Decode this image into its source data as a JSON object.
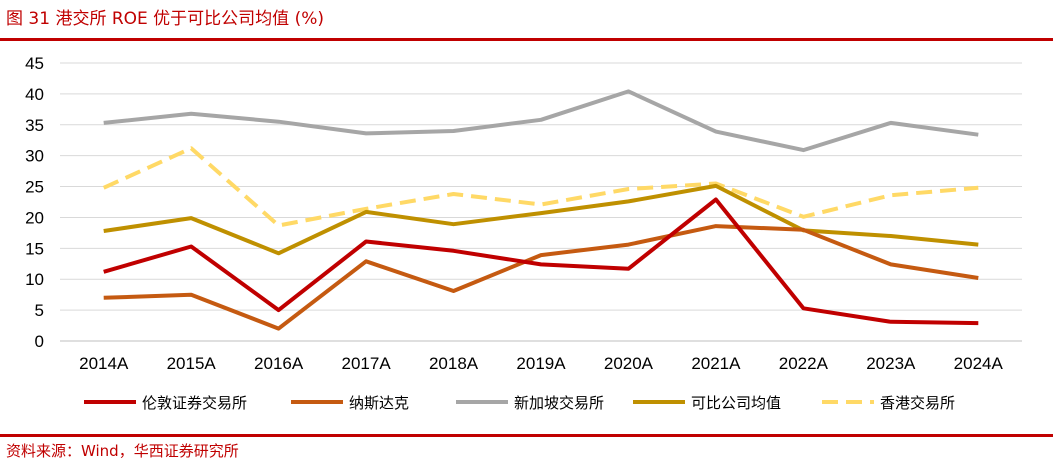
{
  "figure": {
    "title": "图 31  港交所 ROE 优于可比公司均值 (%)",
    "source": "资料来源：Wind，华西证券研究所"
  },
  "chart_data": {
    "type": "line",
    "title": "",
    "xlabel": "",
    "ylabel": "",
    "ylim": [
      0,
      45
    ],
    "yticks": [
      "0",
      "5",
      "10",
      "15",
      "20",
      "25",
      "30",
      "35",
      "40",
      "45"
    ],
    "grid": true,
    "legend_position": "bottom",
    "categories": [
      "2014A",
      "2015A",
      "2016A",
      "2017A",
      "2018A",
      "2019A",
      "2020A",
      "2021A",
      "2022A",
      "2023A",
      "2024A"
    ],
    "series": [
      {
        "name": "伦敦证券交易所",
        "color": "#c00000",
        "dash": "solid",
        "values": [
          11.2,
          15.3,
          5.0,
          16.1,
          14.6,
          12.4,
          11.7,
          22.9,
          5.3,
          3.1,
          2.9
        ]
      },
      {
        "name": "纳斯达克",
        "color": "#c55a11",
        "dash": "solid",
        "values": [
          7.0,
          7.5,
          2.0,
          12.9,
          8.1,
          13.9,
          15.6,
          18.6,
          18.0,
          12.4,
          10.2
        ]
      },
      {
        "name": "新加坡交易所",
        "color": "#a6a6a6",
        "dash": "solid",
        "values": [
          35.3,
          36.8,
          35.5,
          33.6,
          34.0,
          35.8,
          40.4,
          33.9,
          30.9,
          35.3,
          33.4
        ]
      },
      {
        "name": "可比公司均值",
        "color": "#bf9000",
        "dash": "solid",
        "values": [
          17.8,
          19.9,
          14.2,
          20.9,
          18.9,
          20.7,
          22.6,
          25.1,
          17.9,
          17.0,
          15.6
        ]
      },
      {
        "name": "香港交易所",
        "color": "#ffd966",
        "dash": "dashed",
        "values": [
          24.8,
          31.2,
          18.7,
          21.4,
          23.8,
          22.1,
          24.6,
          25.5,
          20.1,
          23.6,
          24.8
        ]
      }
    ]
  }
}
